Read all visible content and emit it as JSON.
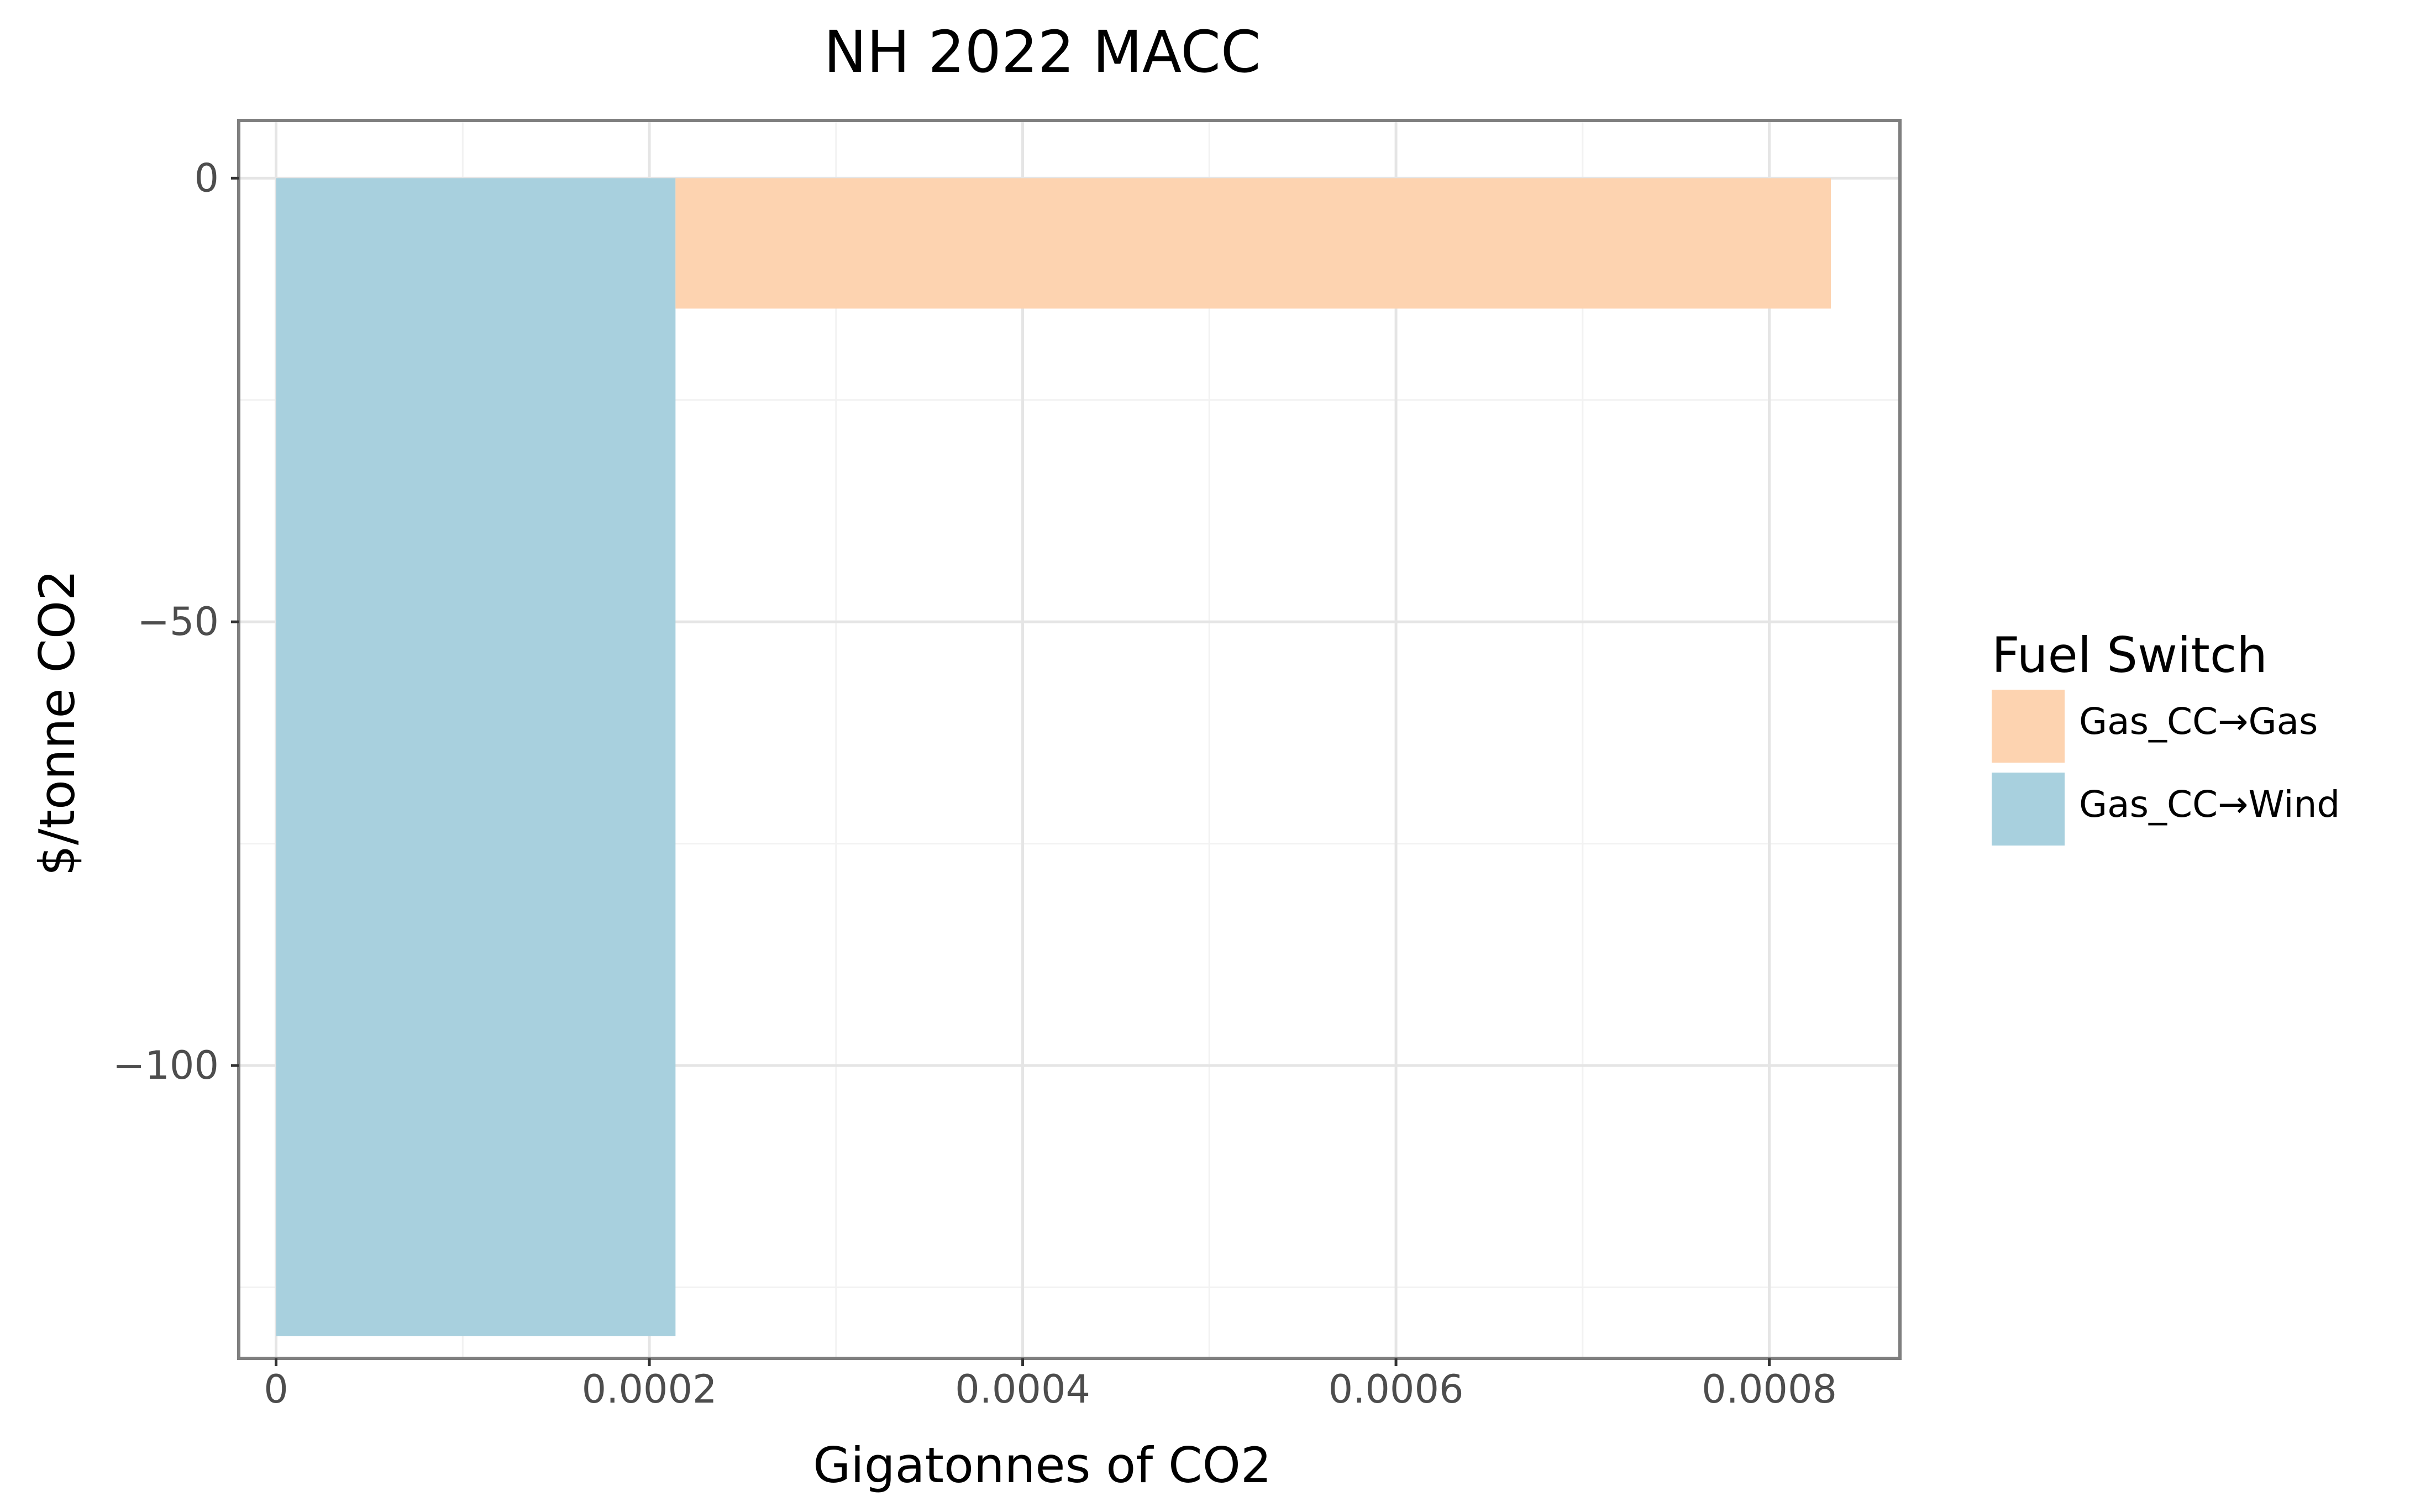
{
  "chart_data": {
    "type": "bar",
    "title": "NH 2022 MACC",
    "xlabel": "Gigatonnes of CO2",
    "ylabel": "$/tonne CO2",
    "xlim": [
      -2e-05,
      0.00087
    ],
    "ylim": [
      -133,
      6.5
    ],
    "x_ticks": [
      {
        "value": 0,
        "label": "0"
      },
      {
        "value": 0.0002,
        "label": "0.0002"
      },
      {
        "value": 0.0004,
        "label": "0.0004"
      },
      {
        "value": 0.0006,
        "label": "0.0006"
      },
      {
        "value": 0.0008,
        "label": "0.0008"
      }
    ],
    "x_minor_ticks": [
      0.0001,
      0.0003,
      0.0005,
      0.0007
    ],
    "y_ticks": [
      {
        "value": 0,
        "label": "0"
      },
      {
        "value": -50,
        "label": "−50"
      },
      {
        "value": -100,
        "label": "−100"
      }
    ],
    "y_minor_ticks": [
      -25,
      -75,
      -125
    ],
    "grid": true,
    "legend": {
      "title": "Fuel Switch",
      "placement": "right",
      "entries": [
        {
          "label": "Gas_CC→Gas",
          "color": "#fdd3b0"
        },
        {
          "label": "Gas_CC→Wind",
          "color": "#a8d0de"
        }
      ]
    },
    "series": [
      {
        "name": "Gas_CC→Wind",
        "color": "#a8d0de",
        "x_start": 0,
        "x_end": 0.000214,
        "value": -130.5
      },
      {
        "name": "Gas_CC→Gas",
        "color": "#fdd3b0",
        "x_start": 0.000214,
        "x_end": 0.000833,
        "value": -14.7
      }
    ]
  }
}
